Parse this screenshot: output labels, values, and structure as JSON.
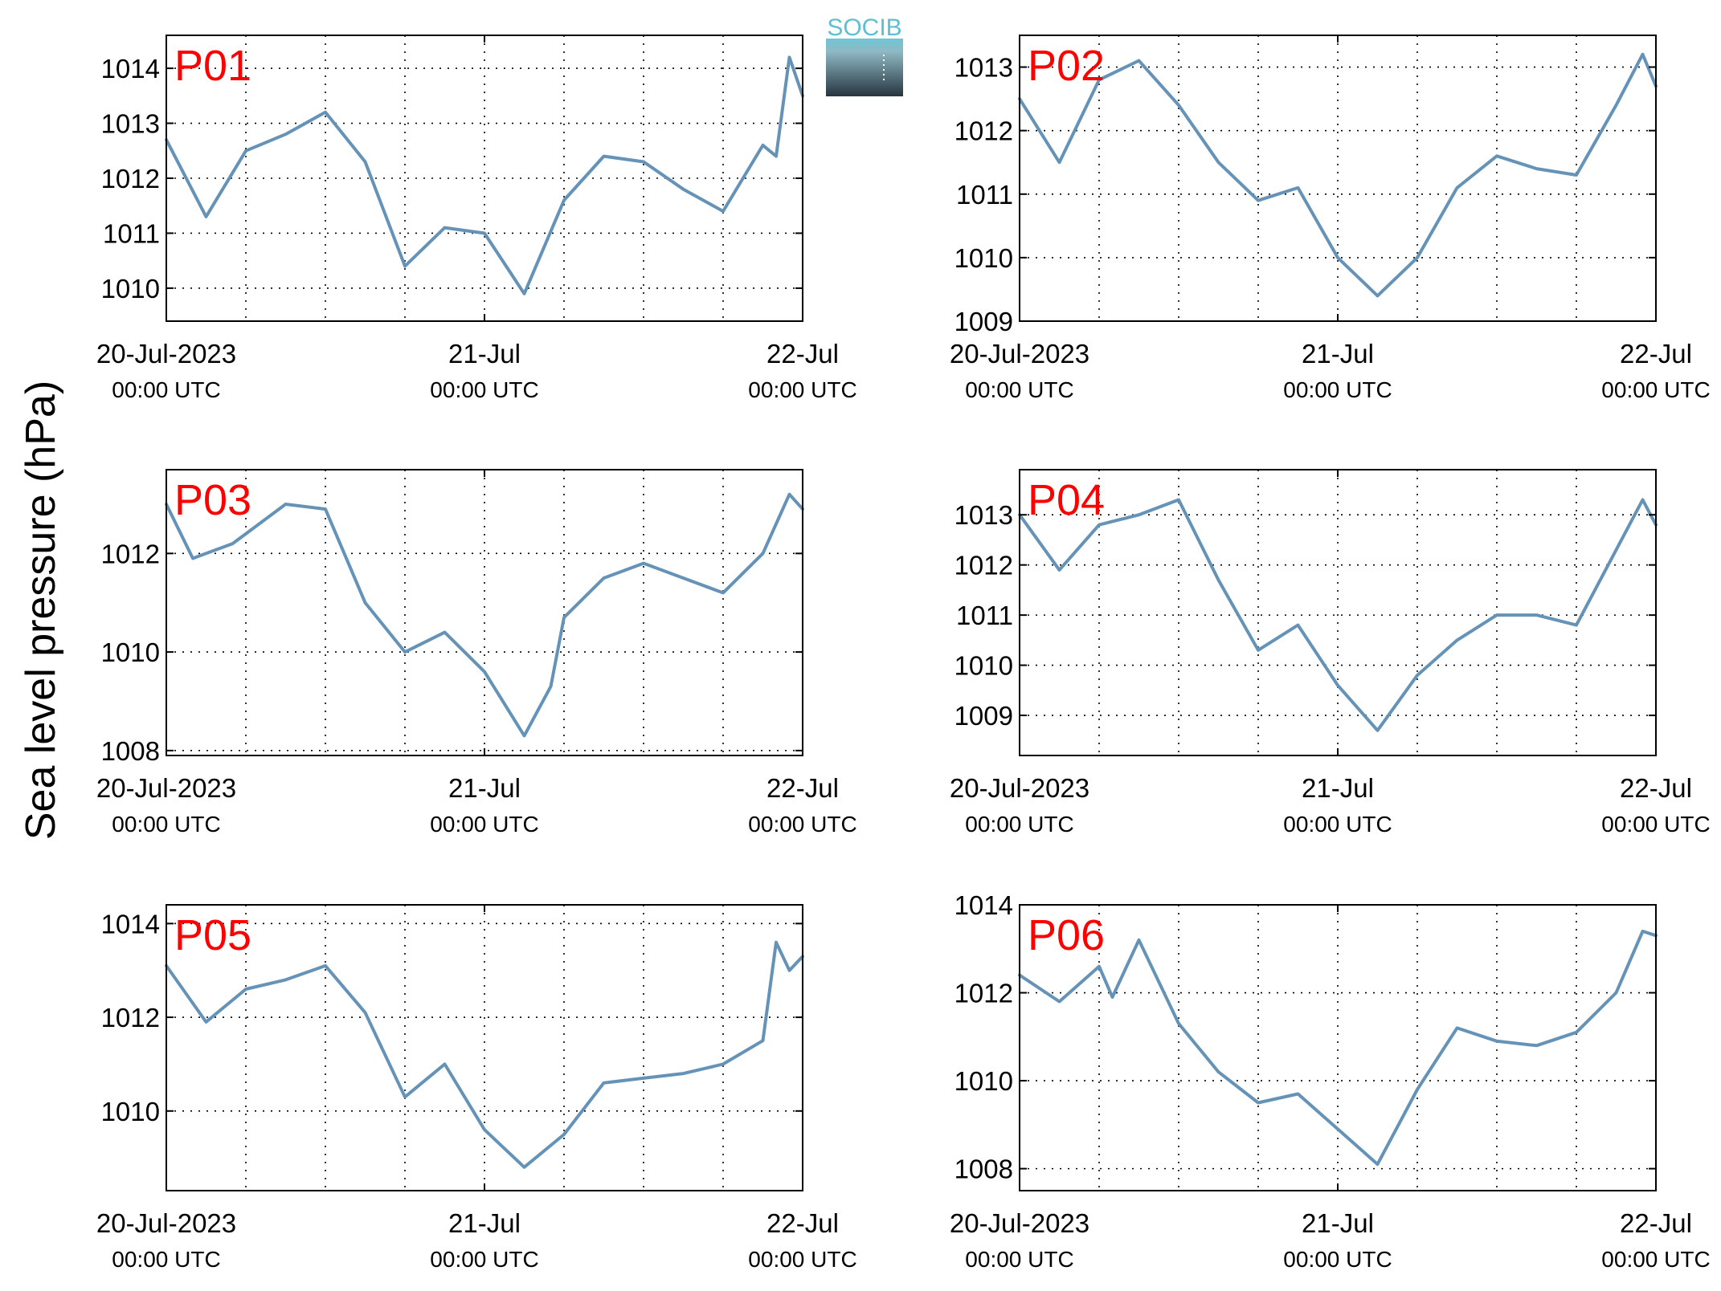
{
  "figure": {
    "ylabel": "Sea level pressure (hPa)",
    "logo_text": "SOCIB",
    "line_color": "#6593b8",
    "label_color": "#ff0000"
  },
  "chart_data": [
    {
      "type": "line",
      "panel_label": "P01",
      "ylim": [
        1009.4,
        1014.6
      ],
      "yticks": [
        1010,
        1011,
        1012,
        1013,
        1014
      ],
      "xticks": [
        {
          "time": "20-Jul-2023 00:00 UTC",
          "label": "20-Jul-2023",
          "sublabel": "00:00 UTC"
        },
        {
          "time": "21-Jul-2023 00:00 UTC",
          "label": "21-Jul",
          "sublabel": "00:00 UTC"
        },
        {
          "time": "22-Jul-2023 00:00 UTC",
          "label": "22-Jul",
          "sublabel": "00:00 UTC"
        }
      ],
      "grid": true,
      "series": [
        {
          "x": [
            "2023-07-20T00:00",
            "2023-07-20T03:00",
            "2023-07-20T06:00",
            "2023-07-20T09:00",
            "2023-07-20T12:00",
            "2023-07-20T15:00",
            "2023-07-20T18:00",
            "2023-07-20T21:00",
            "2023-07-21T00:00",
            "2023-07-21T03:00",
            "2023-07-21T06:00",
            "2023-07-21T09:00",
            "2023-07-21T12:00",
            "2023-07-21T15:00",
            "2023-07-21T18:00",
            "2023-07-21T21:00",
            "2023-07-21T22:00",
            "2023-07-21T23:00",
            "2023-07-22T00:00"
          ],
          "y": [
            1012.7,
            1011.3,
            1012.5,
            1012.8,
            1013.2,
            1012.3,
            1010.4,
            1011.1,
            1011.0,
            1009.9,
            1011.6,
            1012.4,
            1012.3,
            1011.8,
            1011.4,
            1012.6,
            1012.4,
            1014.2,
            1013.5
          ]
        }
      ]
    },
    {
      "type": "line",
      "panel_label": "P02",
      "ylim": [
        1009.0,
        1013.5
      ],
      "yticks": [
        1009,
        1010,
        1011,
        1012,
        1013
      ],
      "xticks": [
        {
          "time": "20-Jul-2023 00:00 UTC",
          "label": "20-Jul-2023",
          "sublabel": "00:00 UTC"
        },
        {
          "time": "21-Jul-2023 00:00 UTC",
          "label": "21-Jul",
          "sublabel": "00:00 UTC"
        },
        {
          "time": "22-Jul-2023 00:00 UTC",
          "label": "22-Jul",
          "sublabel": "00:00 UTC"
        }
      ],
      "grid": true,
      "series": [
        {
          "x": [
            "2023-07-20T00:00",
            "2023-07-20T03:00",
            "2023-07-20T06:00",
            "2023-07-20T09:00",
            "2023-07-20T12:00",
            "2023-07-20T15:00",
            "2023-07-20T18:00",
            "2023-07-20T21:00",
            "2023-07-21T00:00",
            "2023-07-21T03:00",
            "2023-07-21T06:00",
            "2023-07-21T09:00",
            "2023-07-21T12:00",
            "2023-07-21T15:00",
            "2023-07-21T18:00",
            "2023-07-21T21:00",
            "2023-07-21T23:00",
            "2023-07-22T00:00"
          ],
          "y": [
            1012.5,
            1011.5,
            1012.8,
            1013.1,
            1012.4,
            1011.5,
            1010.9,
            1011.1,
            1010.0,
            1009.4,
            1010.0,
            1011.1,
            1011.6,
            1011.4,
            1011.3,
            1012.4,
            1013.2,
            1012.7
          ]
        }
      ]
    },
    {
      "type": "line",
      "panel_label": "P03",
      "ylim": [
        1007.9,
        1013.7
      ],
      "yticks": [
        1008,
        1010,
        1012
      ],
      "xticks": [
        {
          "time": "20-Jul-2023 00:00 UTC",
          "label": "20-Jul-2023",
          "sublabel": "00:00 UTC"
        },
        {
          "time": "21-Jul-2023 00:00 UTC",
          "label": "21-Jul",
          "sublabel": "00:00 UTC"
        },
        {
          "time": "22-Jul-2023 00:00 UTC",
          "label": "22-Jul",
          "sublabel": "00:00 UTC"
        }
      ],
      "grid": true,
      "series": [
        {
          "x": [
            "2023-07-20T00:00",
            "2023-07-20T02:00",
            "2023-07-20T05:00",
            "2023-07-20T09:00",
            "2023-07-20T12:00",
            "2023-07-20T15:00",
            "2023-07-20T18:00",
            "2023-07-20T21:00",
            "2023-07-21T00:00",
            "2023-07-21T03:00",
            "2023-07-21T05:00",
            "2023-07-21T06:00",
            "2023-07-21T09:00",
            "2023-07-21T12:00",
            "2023-07-21T15:00",
            "2023-07-21T18:00",
            "2023-07-21T21:00",
            "2023-07-21T23:00",
            "2023-07-22T00:00"
          ],
          "y": [
            1013.0,
            1011.9,
            1012.2,
            1013.0,
            1012.9,
            1011.0,
            1010.0,
            1010.4,
            1009.6,
            1008.3,
            1009.3,
            1010.7,
            1011.5,
            1011.8,
            1011.5,
            1011.2,
            1012.0,
            1013.2,
            1012.9
          ]
        }
      ]
    },
    {
      "type": "line",
      "panel_label": "P04",
      "ylim": [
        1008.2,
        1013.9
      ],
      "yticks": [
        1009,
        1010,
        1011,
        1012,
        1013
      ],
      "xticks": [
        {
          "time": "20-Jul-2023 00:00 UTC",
          "label": "20-Jul-2023",
          "sublabel": "00:00 UTC"
        },
        {
          "time": "21-Jul-2023 00:00 UTC",
          "label": "21-Jul",
          "sublabel": "00:00 UTC"
        },
        {
          "time": "22-Jul-2023 00:00 UTC",
          "label": "22-Jul",
          "sublabel": "00:00 UTC"
        }
      ],
      "grid": true,
      "series": [
        {
          "x": [
            "2023-07-20T00:00",
            "2023-07-20T03:00",
            "2023-07-20T06:00",
            "2023-07-20T09:00",
            "2023-07-20T12:00",
            "2023-07-20T15:00",
            "2023-07-20T18:00",
            "2023-07-20T21:00",
            "2023-07-21T00:00",
            "2023-07-21T03:00",
            "2023-07-21T06:00",
            "2023-07-21T09:00",
            "2023-07-21T12:00",
            "2023-07-21T15:00",
            "2023-07-21T18:00",
            "2023-07-21T21:00",
            "2023-07-21T23:00",
            "2023-07-22T00:00"
          ],
          "y": [
            1013.0,
            1011.9,
            1012.8,
            1013.0,
            1013.3,
            1011.7,
            1010.3,
            1010.8,
            1009.6,
            1008.7,
            1009.8,
            1010.5,
            1011.0,
            1011.0,
            1010.8,
            1012.3,
            1013.3,
            1012.8
          ]
        }
      ]
    },
    {
      "type": "line",
      "panel_label": "P05",
      "ylim": [
        1008.3,
        1014.4
      ],
      "yticks": [
        1010,
        1012,
        1014
      ],
      "xticks": [
        {
          "time": "20-Jul-2023 00:00 UTC",
          "label": "20-Jul-2023",
          "sublabel": "00:00 UTC"
        },
        {
          "time": "21-Jul-2023 00:00 UTC",
          "label": "21-Jul",
          "sublabel": "00:00 UTC"
        },
        {
          "time": "22-Jul-2023 00:00 UTC",
          "label": "22-Jul",
          "sublabel": "00:00 UTC"
        }
      ],
      "grid": true,
      "series": [
        {
          "x": [
            "2023-07-20T00:00",
            "2023-07-20T03:00",
            "2023-07-20T06:00",
            "2023-07-20T09:00",
            "2023-07-20T12:00",
            "2023-07-20T15:00",
            "2023-07-20T18:00",
            "2023-07-20T21:00",
            "2023-07-21T00:00",
            "2023-07-21T03:00",
            "2023-07-21T06:00",
            "2023-07-21T09:00",
            "2023-07-21T12:00",
            "2023-07-21T15:00",
            "2023-07-21T18:00",
            "2023-07-21T21:00",
            "2023-07-21T22:00",
            "2023-07-21T23:00",
            "2023-07-22T00:00"
          ],
          "y": [
            1013.1,
            1011.9,
            1012.6,
            1012.8,
            1013.1,
            1012.1,
            1010.3,
            1011.0,
            1009.6,
            1008.8,
            1009.5,
            1010.6,
            1010.7,
            1010.8,
            1011.0,
            1011.5,
            1013.6,
            1013.0,
            1013.3
          ]
        }
      ]
    },
    {
      "type": "line",
      "panel_label": "P06",
      "ylim": [
        1007.5,
        1014.0
      ],
      "yticks": [
        1008,
        1010,
        1012,
        1014
      ],
      "xticks": [
        {
          "time": "20-Jul-2023 00:00 UTC",
          "label": "20-Jul-2023",
          "sublabel": "00:00 UTC"
        },
        {
          "time": "21-Jul-2023 00:00 UTC",
          "label": "21-Jul",
          "sublabel": "00:00 UTC"
        },
        {
          "time": "22-Jul-2023 00:00 UTC",
          "label": "22-Jul",
          "sublabel": "00:00 UTC"
        }
      ],
      "grid": true,
      "series": [
        {
          "x": [
            "2023-07-20T00:00",
            "2023-07-20T03:00",
            "2023-07-20T06:00",
            "2023-07-20T07:00",
            "2023-07-20T09:00",
            "2023-07-20T12:00",
            "2023-07-20T15:00",
            "2023-07-20T18:00",
            "2023-07-20T21:00",
            "2023-07-21T00:00",
            "2023-07-21T03:00",
            "2023-07-21T06:00",
            "2023-07-21T09:00",
            "2023-07-21T12:00",
            "2023-07-21T15:00",
            "2023-07-21T18:00",
            "2023-07-21T21:00",
            "2023-07-21T23:00",
            "2023-07-22T00:00"
          ],
          "y": [
            1012.4,
            1011.8,
            1012.6,
            1011.9,
            1013.2,
            1011.3,
            1010.2,
            1009.5,
            1009.7,
            1008.9,
            1008.1,
            1009.8,
            1011.2,
            1010.9,
            1010.8,
            1011.1,
            1012.0,
            1013.4,
            1013.3
          ]
        }
      ]
    }
  ]
}
